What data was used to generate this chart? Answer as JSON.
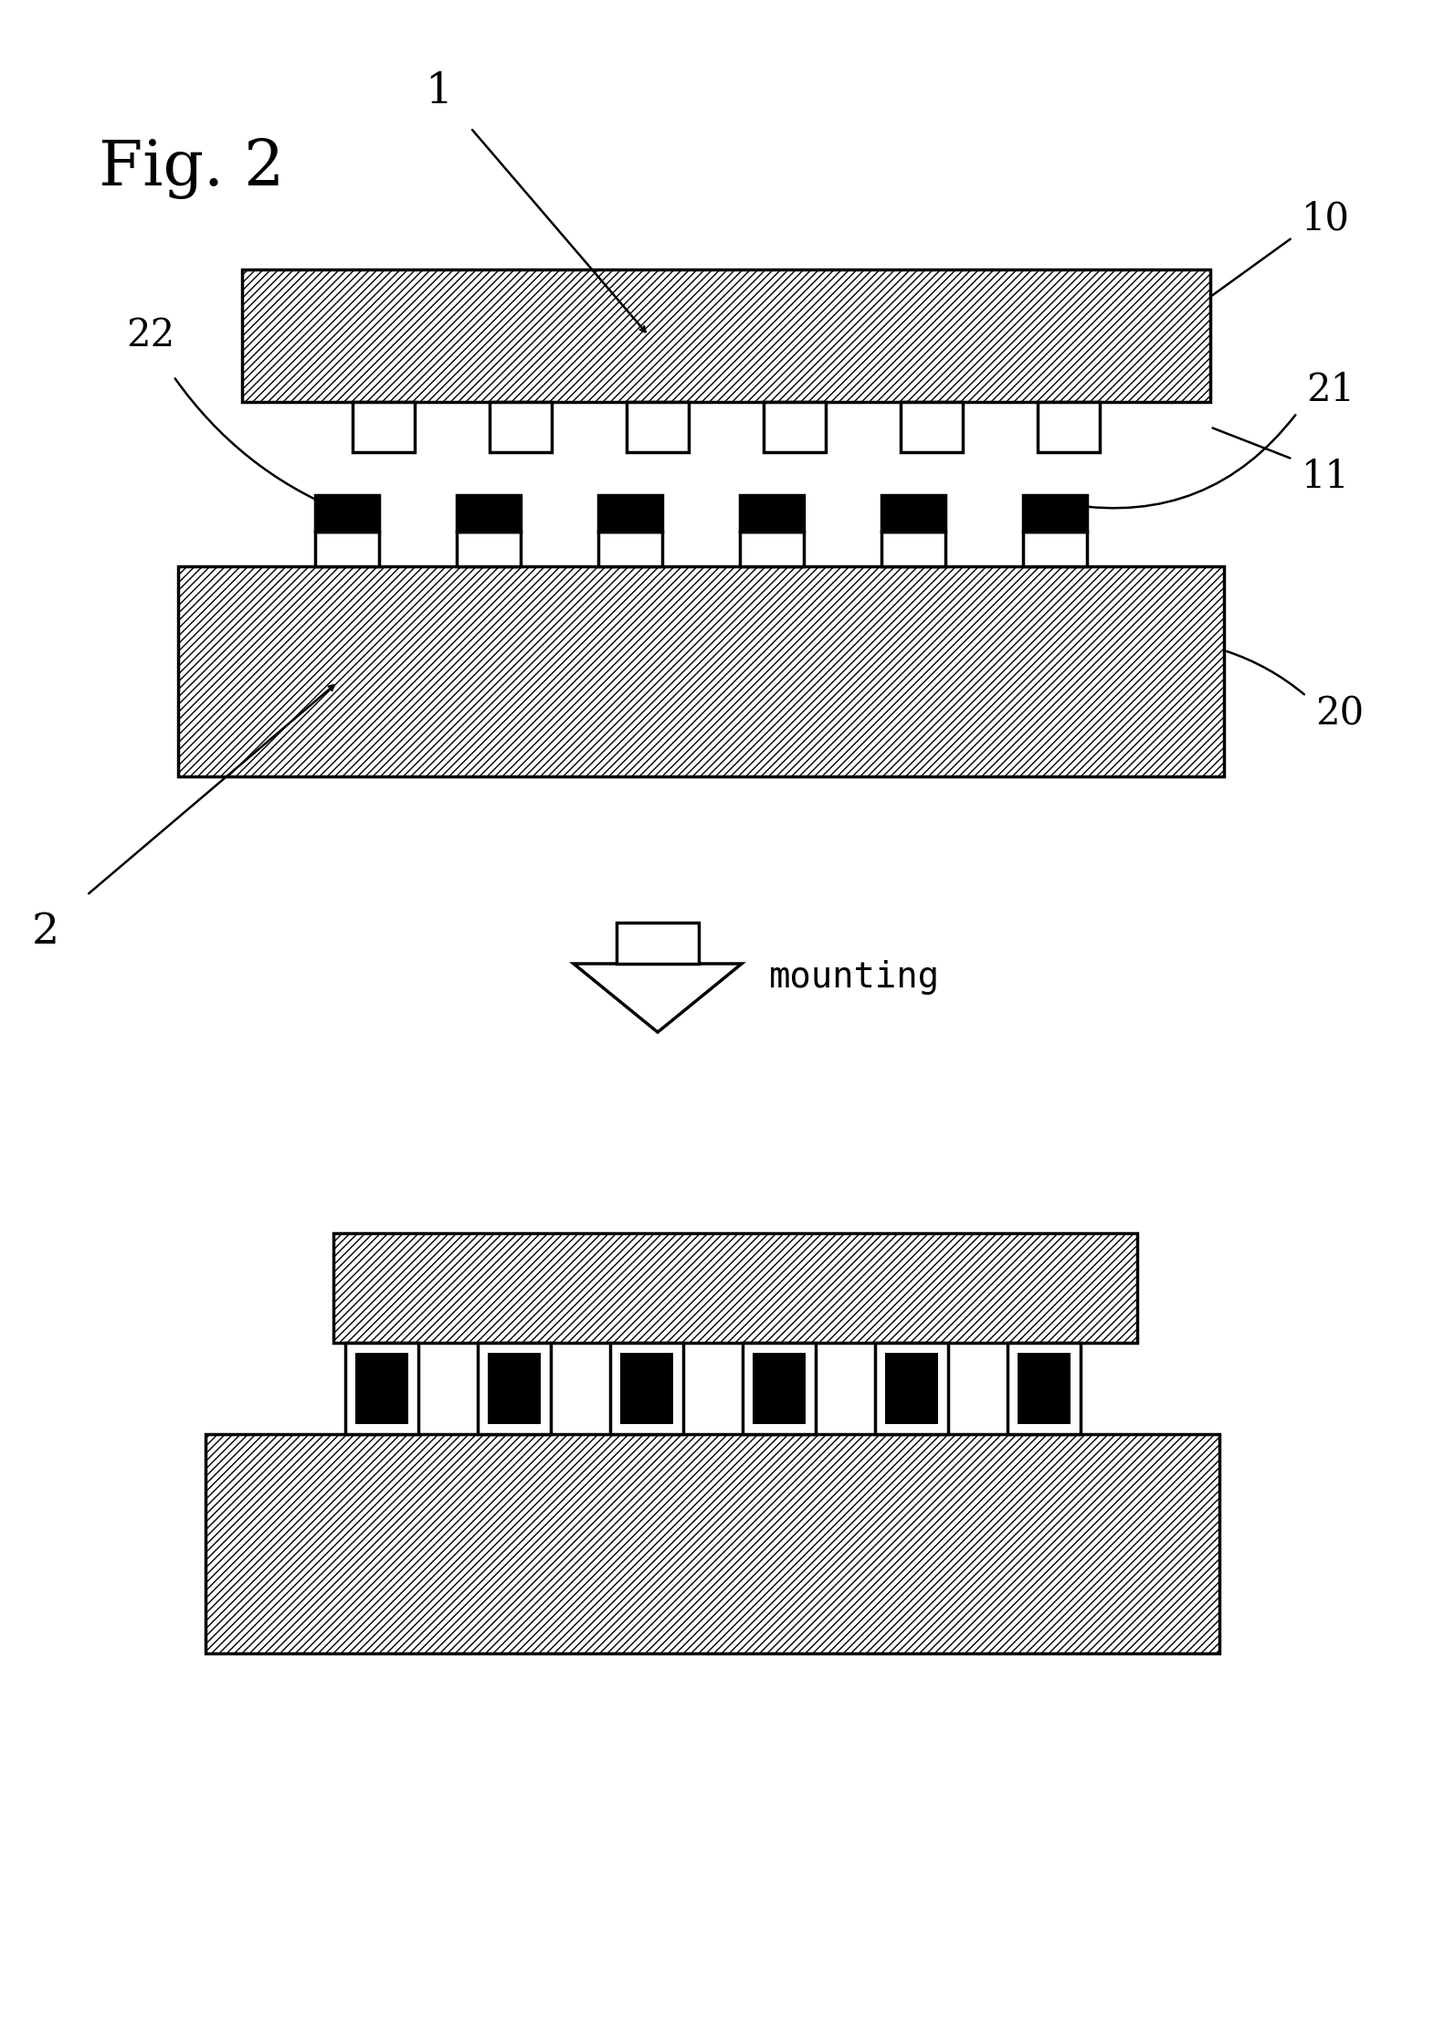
{
  "fig_label": "Fig. 2",
  "bg_color": "#ffffff",
  "label_1": "1",
  "label_10": "10",
  "label_11": "11",
  "label_2": "2",
  "label_20": "20",
  "label_21": "21",
  "label_22": "22",
  "mounting_text": "mounting",
  "line_width": 2.5,
  "bump_count": 6,
  "hatch": "////",
  "hatch_lw": 1.5
}
